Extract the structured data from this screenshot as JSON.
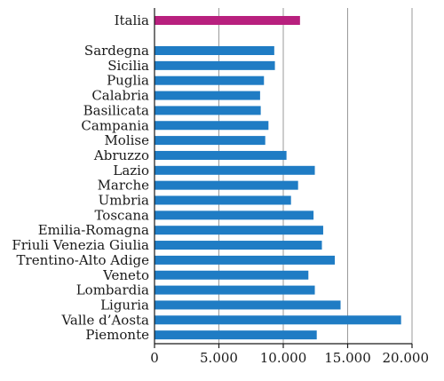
{
  "chart_data": {
    "type": "bar",
    "orientation": "horizontal",
    "categories": [
      "Italia",
      "Sardegna",
      "Sicilia",
      "Puglia",
      "Calabria",
      "Basilicata",
      "Campania",
      "Molise",
      "Abruzzo",
      "Lazio",
      "Marche",
      "Umbria",
      "Toscana",
      "Emilia-Romagna",
      "Friuli Venezia Giulia",
      "Trentino-Alto Adige",
      "Veneto",
      "Lombardia",
      "Liguria",
      "Valle d’Aosta",
      "Piemonte"
    ],
    "values": [
      11300,
      9300,
      9350,
      8500,
      8200,
      8250,
      8850,
      8600,
      10250,
      12450,
      11150,
      10600,
      12350,
      13100,
      13000,
      14000,
      11950,
      12450,
      14450,
      19150,
      12600
    ],
    "bar_colors": [
      "#b8207e",
      "#1f7cc4",
      "#1f7cc4",
      "#1f7cc4",
      "#1f7cc4",
      "#1f7cc4",
      "#1f7cc4",
      "#1f7cc4",
      "#1f7cc4",
      "#1f7cc4",
      "#1f7cc4",
      "#1f7cc4",
      "#1f7cc4",
      "#1f7cc4",
      "#1f7cc4",
      "#1f7cc4",
      "#1f7cc4",
      "#1f7cc4",
      "#1f7cc4",
      "#1f7cc4",
      "#1f7cc4"
    ],
    "xlim": [
      0,
      20000
    ],
    "xticks": [
      0,
      5000,
      10000,
      15000,
      20000
    ],
    "xtick_labels": [
      "0",
      "5.000",
      "10.000",
      "15.000",
      "20.000"
    ],
    "grid": "vertical",
    "title": "",
    "xlabel": "",
    "ylabel": ""
  },
  "colors": {
    "highlight": "#b8207e",
    "bars": "#1f7cc4",
    "grid": "#9a9a9a",
    "axis": "#1a1a1a"
  }
}
